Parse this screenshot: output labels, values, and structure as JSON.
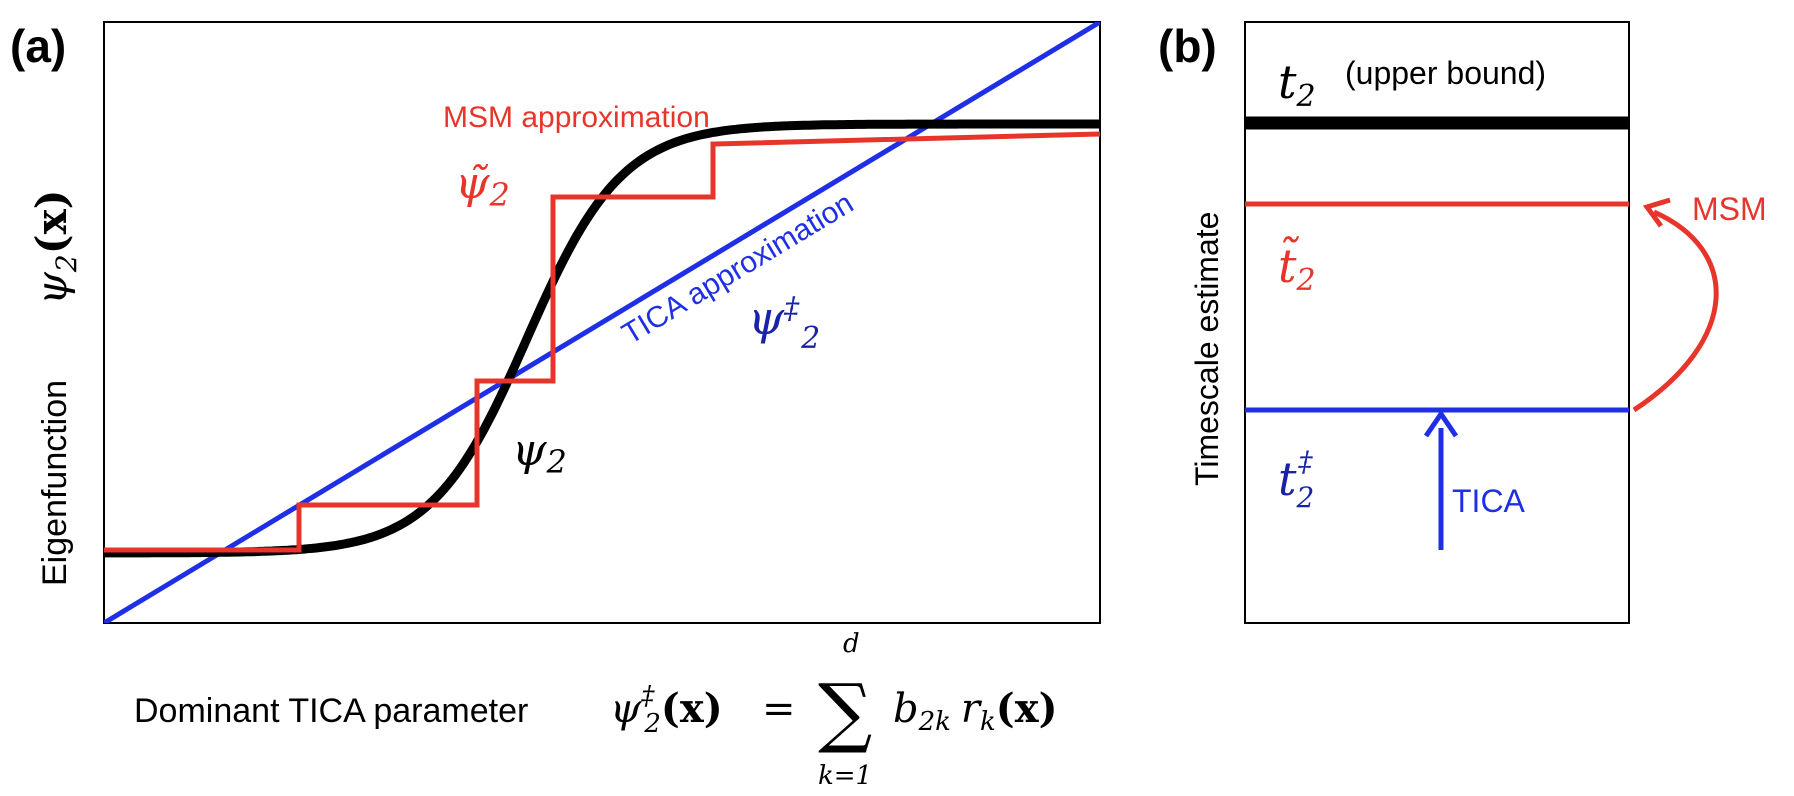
{
  "colors": {
    "exact": "#000000",
    "msm": "#e8352b",
    "tica": "#1f2fe6",
    "tica_math": "#1a23a8"
  },
  "panel_a": {
    "label": "(a)",
    "ylabel_text": "Eigenfunction",
    "ylabel_math": {
      "symbol": "ψ",
      "sub": "2",
      "arg": "(x)"
    },
    "msm_label": "MSM approximation",
    "msm_math": {
      "symbol": "ψ̃",
      "sub": "2"
    },
    "tica_label": "TICA approximation",
    "tica_math": {
      "symbol": "ψ",
      "sup": "‡",
      "sub": "2"
    },
    "exact_math": {
      "symbol": "ψ",
      "sub": "2"
    },
    "xlabel_text": "Dominant TICA parameter",
    "xlabel_math": {
      "lhs_symbol": "ψ",
      "lhs_sup": "‡",
      "lhs_sub": "2",
      "lhs_arg": "(x)",
      "equals": "=",
      "sum": "∑",
      "sum_upper": "d",
      "sum_lower": "k=1",
      "coef": "b",
      "coef_sub": "2k",
      "basis": "r",
      "basis_sub": "k",
      "basis_arg": "(x)"
    }
  },
  "panel_b": {
    "label": "(b)",
    "ylabel": "Timescale estimate",
    "upper_math": {
      "symbol": "t",
      "sub": "2"
    },
    "upper_note": "(upper bound)",
    "msm_math": {
      "symbol": "t̃",
      "sub": "2"
    },
    "tica_math": {
      "symbol": "t",
      "sup": "‡",
      "sub": "2"
    },
    "msm_arrow_label": "MSM",
    "tica_arrow_label": "TICA"
  }
}
